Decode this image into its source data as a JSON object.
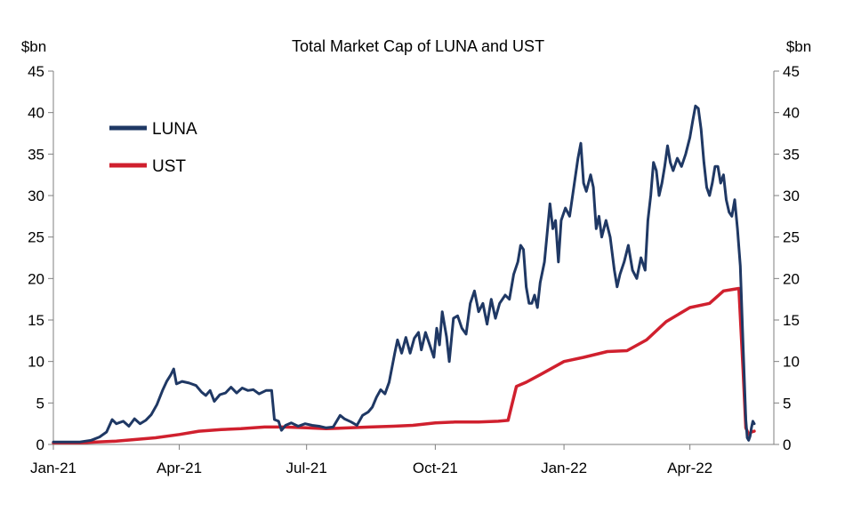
{
  "chart_data": {
    "type": "line",
    "title": "Total Market Cap of LUNA and UST",
    "y_unit_left": "$bn",
    "y_unit_right": "$bn",
    "ylim": [
      0,
      45
    ],
    "y_ticks": [
      0,
      5,
      10,
      15,
      20,
      25,
      30,
      35,
      40,
      45
    ],
    "x_range": [
      "2021-01-01",
      "2022-05-31"
    ],
    "x_ticks": [
      {
        "date": "2021-01-01",
        "label": "Jan-21"
      },
      {
        "date": "2021-04-01",
        "label": "Apr-21"
      },
      {
        "date": "2021-07-01",
        "label": "Jul-21"
      },
      {
        "date": "2021-10-01",
        "label": "Oct-21"
      },
      {
        "date": "2022-01-01",
        "label": "Jan-22"
      },
      {
        "date": "2022-04-01",
        "label": "Apr-22"
      }
    ],
    "grid": false,
    "legend": "top-left",
    "series": [
      {
        "name": "LUNA",
        "color": "#1f3864",
        "points": [
          [
            "2021-01-01",
            0.3
          ],
          [
            "2021-01-10",
            0.3
          ],
          [
            "2021-01-20",
            0.3
          ],
          [
            "2021-01-28",
            0.5
          ],
          [
            "2021-02-03",
            0.9
          ],
          [
            "2021-02-08",
            1.5
          ],
          [
            "2021-02-12",
            3.0
          ],
          [
            "2021-02-15",
            2.5
          ],
          [
            "2021-02-20",
            2.8
          ],
          [
            "2021-02-24",
            2.2
          ],
          [
            "2021-02-28",
            3.1
          ],
          [
            "2021-03-04",
            2.5
          ],
          [
            "2021-03-08",
            2.9
          ],
          [
            "2021-03-12",
            3.6
          ],
          [
            "2021-03-16",
            4.8
          ],
          [
            "2021-03-20",
            6.5
          ],
          [
            "2021-03-23",
            7.6
          ],
          [
            "2021-03-26",
            8.4
          ],
          [
            "2021-03-28",
            9.1
          ],
          [
            "2021-03-30",
            7.3
          ],
          [
            "2021-04-03",
            7.6
          ],
          [
            "2021-04-08",
            7.4
          ],
          [
            "2021-04-13",
            7.1
          ],
          [
            "2021-04-17",
            6.3
          ],
          [
            "2021-04-20",
            5.9
          ],
          [
            "2021-04-23",
            6.5
          ],
          [
            "2021-04-26",
            5.2
          ],
          [
            "2021-04-30",
            6.0
          ],
          [
            "2021-05-04",
            6.2
          ],
          [
            "2021-05-08",
            6.9
          ],
          [
            "2021-05-12",
            6.2
          ],
          [
            "2021-05-16",
            6.8
          ],
          [
            "2021-05-20",
            6.5
          ],
          [
            "2021-05-24",
            6.6
          ],
          [
            "2021-05-28",
            6.1
          ],
          [
            "2021-06-02",
            6.5
          ],
          [
            "2021-06-06",
            6.5
          ],
          [
            "2021-06-08",
            3.0
          ],
          [
            "2021-06-11",
            2.8
          ],
          [
            "2021-06-13",
            1.7
          ],
          [
            "2021-06-16",
            2.3
          ],
          [
            "2021-06-20",
            2.6
          ],
          [
            "2021-06-25",
            2.2
          ],
          [
            "2021-06-30",
            2.5
          ],
          [
            "2021-07-05",
            2.3
          ],
          [
            "2021-07-10",
            2.2
          ],
          [
            "2021-07-15",
            2.0
          ],
          [
            "2021-07-20",
            2.1
          ],
          [
            "2021-07-25",
            3.5
          ],
          [
            "2021-07-28",
            3.1
          ],
          [
            "2021-08-02",
            2.7
          ],
          [
            "2021-08-06",
            2.3
          ],
          [
            "2021-08-10",
            3.5
          ],
          [
            "2021-08-14",
            3.9
          ],
          [
            "2021-08-17",
            4.5
          ],
          [
            "2021-08-20",
            5.7
          ],
          [
            "2021-08-23",
            6.6
          ],
          [
            "2021-08-26",
            6.1
          ],
          [
            "2021-08-29",
            7.5
          ],
          [
            "2021-09-02",
            11.0
          ],
          [
            "2021-09-04",
            12.6
          ],
          [
            "2021-09-07",
            11.0
          ],
          [
            "2021-09-10",
            12.9
          ],
          [
            "2021-09-13",
            11.0
          ],
          [
            "2021-09-16",
            12.8
          ],
          [
            "2021-09-19",
            13.5
          ],
          [
            "2021-09-21",
            11.4
          ],
          [
            "2021-09-24",
            13.5
          ],
          [
            "2021-09-27",
            12.0
          ],
          [
            "2021-09-30",
            10.5
          ],
          [
            "2021-10-02",
            14.0
          ],
          [
            "2021-10-04",
            12.0
          ],
          [
            "2021-10-06",
            16.0
          ],
          [
            "2021-10-09",
            13.0
          ],
          [
            "2021-10-11",
            10.0
          ],
          [
            "2021-10-14",
            15.2
          ],
          [
            "2021-10-17",
            15.5
          ],
          [
            "2021-10-20",
            14.0
          ],
          [
            "2021-10-23",
            13.3
          ],
          [
            "2021-10-26",
            17.0
          ],
          [
            "2021-10-29",
            18.5
          ],
          [
            "2021-11-01",
            16.0
          ],
          [
            "2021-11-04",
            17.0
          ],
          [
            "2021-11-07",
            14.5
          ],
          [
            "2021-11-10",
            17.5
          ],
          [
            "2021-11-13",
            15.2
          ],
          [
            "2021-11-16",
            17.0
          ],
          [
            "2021-11-20",
            18.0
          ],
          [
            "2021-11-23",
            17.5
          ],
          [
            "2021-11-26",
            20.5
          ],
          [
            "2021-11-29",
            22.0
          ],
          [
            "2021-12-01",
            24.0
          ],
          [
            "2021-12-03",
            23.5
          ],
          [
            "2021-12-05",
            19.0
          ],
          [
            "2021-12-07",
            17.0
          ],
          [
            "2021-12-09",
            17.0
          ],
          [
            "2021-12-11",
            18.0
          ],
          [
            "2021-12-13",
            16.5
          ],
          [
            "2021-12-15",
            19.5
          ],
          [
            "2021-12-18",
            22.0
          ],
          [
            "2021-12-20",
            25.5
          ],
          [
            "2021-12-22",
            29.0
          ],
          [
            "2021-12-24",
            26.0
          ],
          [
            "2021-12-26",
            27.0
          ],
          [
            "2021-12-28",
            22.0
          ],
          [
            "2021-12-30",
            27.0
          ],
          [
            "2022-01-02",
            28.5
          ],
          [
            "2022-01-05",
            27.5
          ],
          [
            "2022-01-08",
            31.0
          ],
          [
            "2022-01-11",
            34.5
          ],
          [
            "2022-01-13",
            36.3
          ],
          [
            "2022-01-15",
            31.5
          ],
          [
            "2022-01-17",
            30.5
          ],
          [
            "2022-01-20",
            32.5
          ],
          [
            "2022-01-22",
            31.0
          ],
          [
            "2022-01-24",
            26.0
          ],
          [
            "2022-01-26",
            27.5
          ],
          [
            "2022-01-28",
            25.0
          ],
          [
            "2022-01-31",
            27.0
          ],
          [
            "2022-02-03",
            25.0
          ],
          [
            "2022-02-06",
            21.0
          ],
          [
            "2022-02-08",
            19.0
          ],
          [
            "2022-02-10",
            20.5
          ],
          [
            "2022-02-13",
            22.0
          ],
          [
            "2022-02-16",
            24.0
          ],
          [
            "2022-02-19",
            21.0
          ],
          [
            "2022-02-22",
            20.0
          ],
          [
            "2022-02-25",
            22.5
          ],
          [
            "2022-02-28",
            21.0
          ],
          [
            "2022-03-02",
            27.0
          ],
          [
            "2022-03-04",
            30.0
          ],
          [
            "2022-03-06",
            34.0
          ],
          [
            "2022-03-08",
            33.0
          ],
          [
            "2022-03-10",
            30.0
          ],
          [
            "2022-03-12",
            31.5
          ],
          [
            "2022-03-14",
            33.5
          ],
          [
            "2022-03-16",
            36.0
          ],
          [
            "2022-03-18",
            34.0
          ],
          [
            "2022-03-20",
            33.0
          ],
          [
            "2022-03-23",
            34.5
          ],
          [
            "2022-03-26",
            33.5
          ],
          [
            "2022-03-29",
            35.0
          ],
          [
            "2022-04-01",
            37.0
          ],
          [
            "2022-04-03",
            39.0
          ],
          [
            "2022-04-05",
            40.8
          ],
          [
            "2022-04-07",
            40.5
          ],
          [
            "2022-04-09",
            38.0
          ],
          [
            "2022-04-11",
            34.0
          ],
          [
            "2022-04-13",
            31.0
          ],
          [
            "2022-04-15",
            30.0
          ],
          [
            "2022-04-17",
            31.5
          ],
          [
            "2022-04-19",
            33.5
          ],
          [
            "2022-04-21",
            33.5
          ],
          [
            "2022-04-23",
            31.5
          ],
          [
            "2022-04-25",
            32.5
          ],
          [
            "2022-04-27",
            29.5
          ],
          [
            "2022-04-29",
            28.0
          ],
          [
            "2022-05-01",
            27.5
          ],
          [
            "2022-05-03",
            29.5
          ],
          [
            "2022-05-05",
            26.0
          ],
          [
            "2022-05-07",
            21.5
          ],
          [
            "2022-05-09",
            12.0
          ],
          [
            "2022-05-11",
            3.0
          ],
          [
            "2022-05-12",
            0.8
          ],
          [
            "2022-05-13",
            0.5
          ],
          [
            "2022-05-14",
            1.0
          ],
          [
            "2022-05-15",
            2.0
          ],
          [
            "2022-05-16",
            2.8
          ],
          [
            "2022-05-17",
            2.5
          ]
        ]
      },
      {
        "name": "UST",
        "color": "#d0202e",
        "points": [
          [
            "2021-01-01",
            0.2
          ],
          [
            "2021-01-20",
            0.2
          ],
          [
            "2021-02-01",
            0.3
          ],
          [
            "2021-02-15",
            0.4
          ],
          [
            "2021-03-01",
            0.6
          ],
          [
            "2021-03-15",
            0.8
          ],
          [
            "2021-04-01",
            1.2
          ],
          [
            "2021-04-15",
            1.6
          ],
          [
            "2021-05-01",
            1.8
          ],
          [
            "2021-05-15",
            1.9
          ],
          [
            "2021-06-01",
            2.1
          ],
          [
            "2021-06-15",
            2.1
          ],
          [
            "2021-07-01",
            2.0
          ],
          [
            "2021-07-15",
            1.9
          ],
          [
            "2021-08-01",
            2.0
          ],
          [
            "2021-08-15",
            2.1
          ],
          [
            "2021-09-01",
            2.2
          ],
          [
            "2021-09-15",
            2.3
          ],
          [
            "2021-10-01",
            2.6
          ],
          [
            "2021-10-15",
            2.7
          ],
          [
            "2021-11-01",
            2.7
          ],
          [
            "2021-11-15",
            2.8
          ],
          [
            "2021-11-22",
            2.9
          ],
          [
            "2021-11-28",
            7.0
          ],
          [
            "2021-12-05",
            7.5
          ],
          [
            "2021-12-15",
            8.4
          ],
          [
            "2022-01-01",
            10.0
          ],
          [
            "2022-01-15",
            10.5
          ],
          [
            "2022-02-01",
            11.2
          ],
          [
            "2022-02-15",
            11.3
          ],
          [
            "2022-03-01",
            12.6
          ],
          [
            "2022-03-15",
            14.8
          ],
          [
            "2022-04-01",
            16.5
          ],
          [
            "2022-04-15",
            17.0
          ],
          [
            "2022-04-25",
            18.5
          ],
          [
            "2022-05-02",
            18.7
          ],
          [
            "2022-05-06",
            18.8
          ],
          [
            "2022-05-09",
            9.0
          ],
          [
            "2022-05-11",
            2.0
          ],
          [
            "2022-05-13",
            1.2
          ],
          [
            "2022-05-15",
            1.5
          ],
          [
            "2022-05-17",
            1.6
          ]
        ]
      }
    ]
  }
}
